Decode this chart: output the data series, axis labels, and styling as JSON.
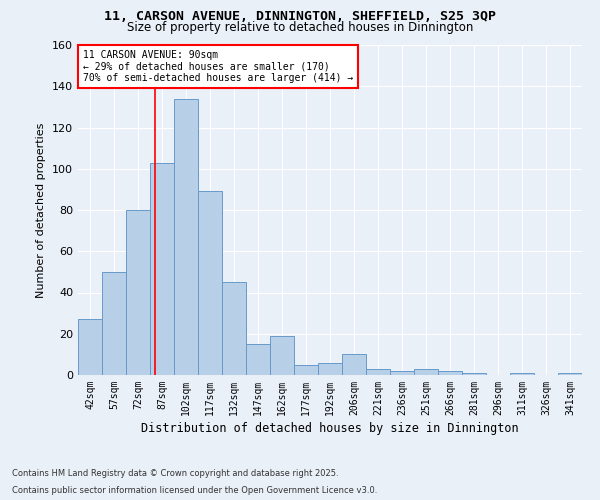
{
  "title_line1": "11, CARSON AVENUE, DINNINGTON, SHEFFIELD, S25 3QP",
  "title_line2": "Size of property relative to detached houses in Dinnington",
  "xlabel": "Distribution of detached houses by size in Dinnington",
  "ylabel": "Number of detached properties",
  "bar_labels": [
    "42sqm",
    "57sqm",
    "72sqm",
    "87sqm",
    "102sqm",
    "117sqm",
    "132sqm",
    "147sqm",
    "162sqm",
    "177sqm",
    "192sqm",
    "206sqm",
    "221sqm",
    "236sqm",
    "251sqm",
    "266sqm",
    "281sqm",
    "296sqm",
    "311sqm",
    "326sqm",
    "341sqm"
  ],
  "bar_values": [
    27,
    50,
    80,
    103,
    134,
    89,
    45,
    15,
    19,
    5,
    6,
    10,
    3,
    2,
    3,
    2,
    1,
    0,
    1,
    0,
    1
  ],
  "bar_color": "#b8cfe8",
  "bar_edge_color": "#6699cc",
  "ylim": [
    0,
    160
  ],
  "yticks": [
    0,
    20,
    40,
    60,
    80,
    100,
    120,
    140,
    160
  ],
  "red_line_index": 3,
  "annotation_text": "11 CARSON AVENUE: 90sqm\n← 29% of detached houses are smaller (170)\n70% of semi-detached houses are larger (414) →",
  "bg_color": "#eaf0f8",
  "fig_bg_color": "#eaf0f8",
  "footer_line1": "Contains HM Land Registry data © Crown copyright and database right 2025.",
  "footer_line2": "Contains public sector information licensed under the Open Government Licence v3.0."
}
